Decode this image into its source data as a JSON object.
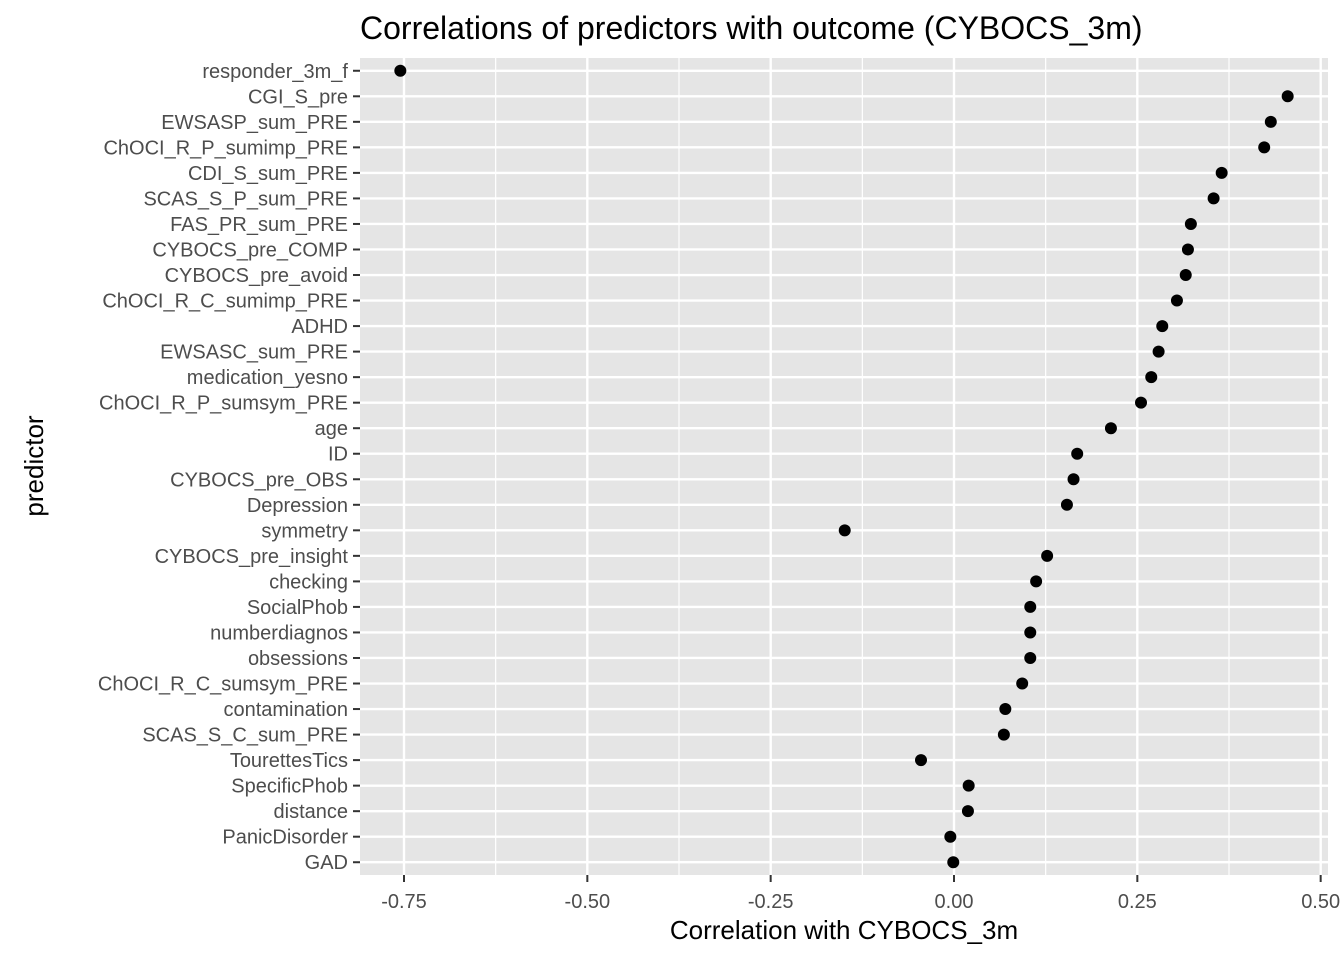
{
  "chart_data": {
    "type": "scatter",
    "title": "Correlations of predictors with outcome (CYBOCS_3m)",
    "xlabel": "Correlation with CYBOCS_3m",
    "ylabel": "predictor",
    "xlim": [
      -0.81,
      0.51
    ],
    "x_ticks": [
      -0.75,
      -0.5,
      -0.25,
      0.0,
      0.25,
      0.5
    ],
    "x_tick_labels": [
      "-0.75",
      "-0.50",
      "-0.25",
      "0.00",
      "0.25",
      "0.50"
    ],
    "grid": true,
    "legend": "none",
    "colors": {
      "panel": "#e5e5e5",
      "grid": "#ffffff",
      "point": "#000000"
    },
    "points": [
      {
        "predictor": "responder_3m_f",
        "value": -0.755
      },
      {
        "predictor": "CGI_S_pre",
        "value": 0.455
      },
      {
        "predictor": "EWSASP_sum_PRE",
        "value": 0.432
      },
      {
        "predictor": "ChOCI_R_P_sumimp_PRE",
        "value": 0.423
      },
      {
        "predictor": "CDI_S_sum_PRE",
        "value": 0.365
      },
      {
        "predictor": "SCAS_S_P_sum_PRE",
        "value": 0.354
      },
      {
        "predictor": "FAS_PR_sum_PRE",
        "value": 0.323
      },
      {
        "predictor": "CYBOCS_pre_COMP",
        "value": 0.319
      },
      {
        "predictor": "CYBOCS_pre_avoid",
        "value": 0.316
      },
      {
        "predictor": "ChOCI_R_C_sumimp_PRE",
        "value": 0.304
      },
      {
        "predictor": "ADHD",
        "value": 0.284
      },
      {
        "predictor": "EWSASC_sum_PRE",
        "value": 0.279
      },
      {
        "predictor": "medication_yesno",
        "value": 0.269
      },
      {
        "predictor": "ChOCI_R_P_sumsym_PRE",
        "value": 0.255
      },
      {
        "predictor": "age",
        "value": 0.214
      },
      {
        "predictor": "ID",
        "value": 0.168
      },
      {
        "predictor": "CYBOCS_pre_OBS",
        "value": 0.163
      },
      {
        "predictor": "Depression",
        "value": 0.154
      },
      {
        "predictor": "symmetry",
        "value": -0.149
      },
      {
        "predictor": "CYBOCS_pre_insight",
        "value": 0.127
      },
      {
        "predictor": "checking",
        "value": 0.112
      },
      {
        "predictor": "SocialPhob",
        "value": 0.104
      },
      {
        "predictor": "numberdiagnos",
        "value": 0.104
      },
      {
        "predictor": "obsessions",
        "value": 0.104
      },
      {
        "predictor": "ChOCI_R_C_sumsym_PRE",
        "value": 0.093
      },
      {
        "predictor": "contamination",
        "value": 0.07
      },
      {
        "predictor": "SCAS_S_C_sum_PRE",
        "value": 0.068
      },
      {
        "predictor": "TourettesTics",
        "value": -0.045
      },
      {
        "predictor": "SpecificPhob",
        "value": 0.02
      },
      {
        "predictor": "distance",
        "value": 0.019
      },
      {
        "predictor": "PanicDisorder",
        "value": -0.005
      },
      {
        "predictor": "GAD",
        "value": -0.001
      }
    ]
  }
}
